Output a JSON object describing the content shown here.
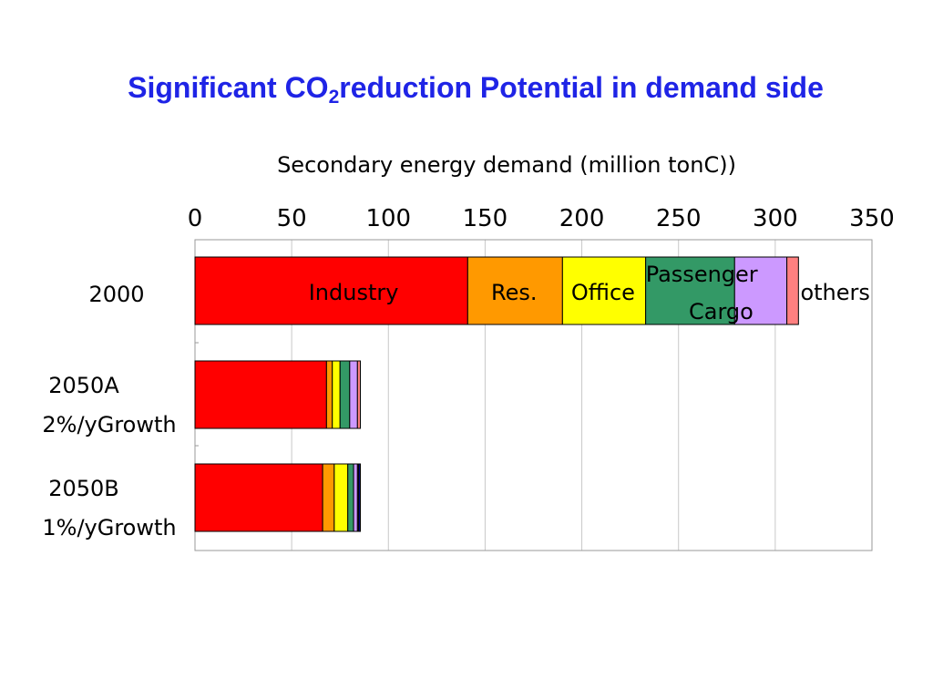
{
  "slide": {
    "title_main": "Significant CO",
    "title_sub": "2",
    "title_rest": "reduction Potential in demand side"
  },
  "chart_data": {
    "type": "bar",
    "orientation": "horizontal",
    "stacked": true,
    "title": "Secondary energy demand (million tonC))",
    "xlim": [
      0,
      350
    ],
    "x_ticks": [
      0,
      50,
      100,
      150,
      200,
      250,
      300,
      350
    ],
    "x_tick_position": "top",
    "grid": true,
    "legend": "none",
    "categories": [
      {
        "line1": "2000",
        "line2": ""
      },
      {
        "line1": "2050A",
        "line2": "2%/yGrowth"
      },
      {
        "line1": "2050B",
        "line2": "1%/yGrowth"
      }
    ],
    "series": [
      {
        "color": "#ff0000",
        "values": [
          141,
          68,
          66
        ]
      },
      {
        "color": "#ff9900",
        "values": [
          49,
          3,
          6
        ]
      },
      {
        "color": "#ffff00",
        "values": [
          43,
          4,
          7
        ]
      },
      {
        "color": "#339966",
        "values": [
          46,
          5,
          3
        ]
      },
      {
        "color": "#cc99ff",
        "values": [
          27,
          4,
          2
        ]
      },
      {
        "color": "#ff8080",
        "values": [
          6,
          1.5,
          0.5
        ]
      },
      {
        "color": "#000080",
        "values": [
          0,
          0,
          1
        ]
      }
    ],
    "segment_labels": [
      {
        "row": 0,
        "text": "Industry",
        "value": 82
      },
      {
        "row": 0,
        "text": "Res.",
        "value": 165
      },
      {
        "row": 0,
        "text": "Office",
        "value": 211
      },
      {
        "row": 0,
        "text": "Passenger",
        "value": 262,
        "line": "upper"
      },
      {
        "row": 0,
        "text": "Cargo",
        "value": 272,
        "line": "lower"
      },
      {
        "row": 0,
        "text": "others",
        "value": 331
      }
    ]
  }
}
